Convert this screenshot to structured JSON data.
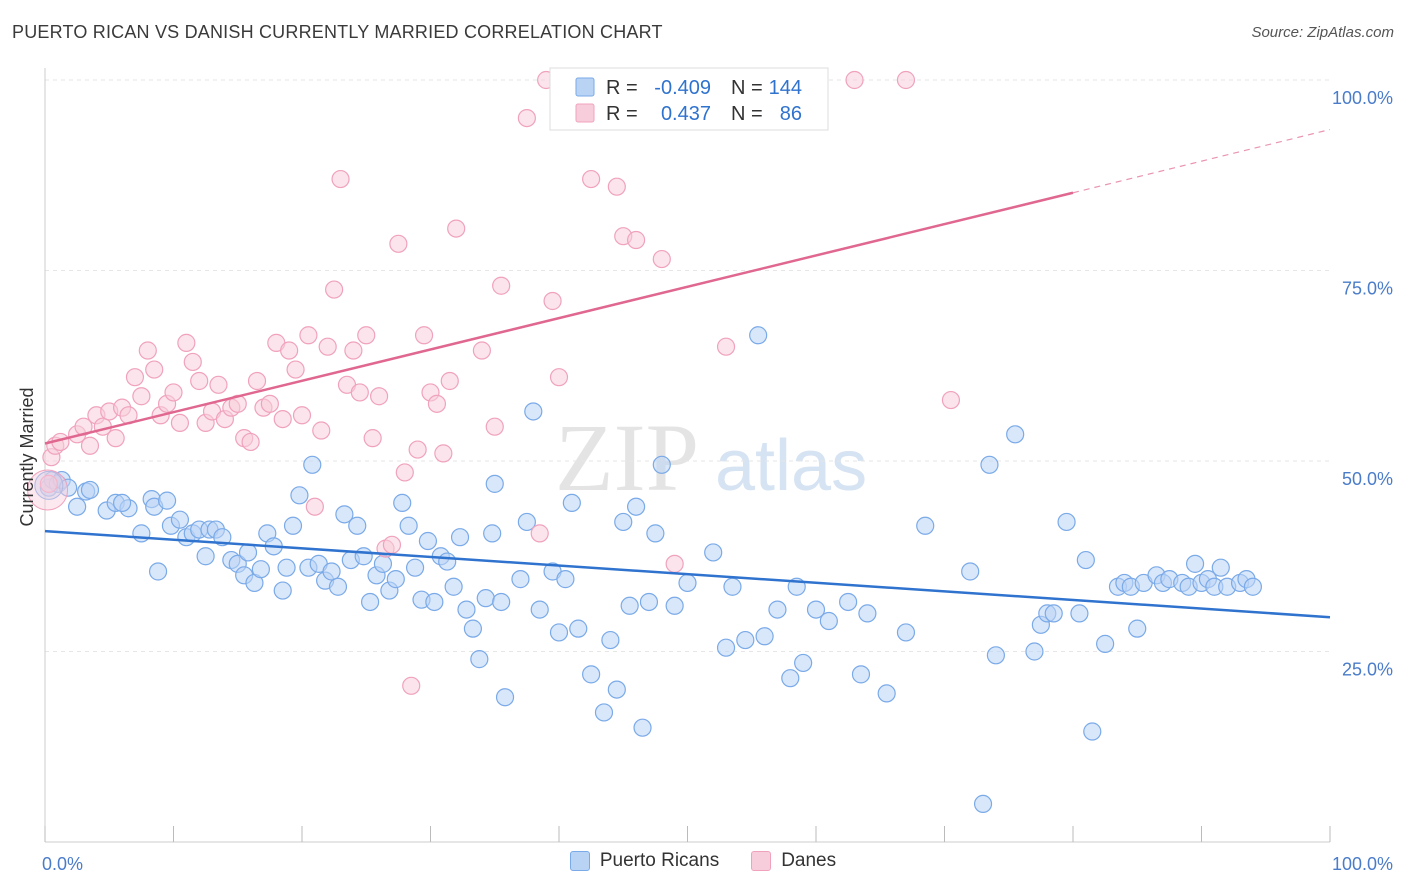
{
  "title": "PUERTO RICAN VS DANISH CURRENTLY MARRIED CORRELATION CHART",
  "source": "Source: ZipAtlas.com",
  "watermark": {
    "zip": "ZIP",
    "atlas": "atlas"
  },
  "chart_data": {
    "type": "scatter",
    "xlabel": "",
    "ylabel": "Currently Married",
    "xlim": [
      0,
      100
    ],
    "ylim": [
      0,
      100
    ],
    "x_tick_labels": [
      "0.0%",
      "100.0%"
    ],
    "y_ticks": [
      25,
      50,
      75,
      100
    ],
    "y_tick_labels": [
      "25.0%",
      "50.0%",
      "75.0%",
      "100.0%"
    ],
    "grid": true,
    "legend": {
      "placement": "top-center",
      "entries": [
        {
          "r_label": "R =",
          "r_value": "-0.409",
          "n_label": "N =",
          "n_value": "144"
        },
        {
          "r_label": "R =",
          "r_value": "0.437",
          "n_label": "N =",
          "n_value": "86"
        }
      ]
    },
    "series": [
      {
        "name": "Puerto Ricans",
        "color": "#7aaae8",
        "fill": "#b9d3f5",
        "line_color": "#2f73cf",
        "trend": {
          "x": [
            0,
            100
          ],
          "y": [
            40.8,
            29.5
          ]
        },
        "points": [
          [
            0.3,
            46.5
          ],
          [
            0.6,
            47.5
          ],
          [
            1.0,
            47.0
          ],
          [
            1.3,
            47.5
          ],
          [
            1.8,
            46.5
          ],
          [
            2.5,
            44.0
          ],
          [
            3.2,
            46.0
          ],
          [
            3.5,
            46.2
          ],
          [
            4.8,
            43.5
          ],
          [
            5.5,
            44.5
          ],
          [
            6.5,
            43.8
          ],
          [
            6.0,
            44.5
          ],
          [
            7.5,
            40.5
          ],
          [
            8.3,
            45.0
          ],
          [
            8.5,
            44.0
          ],
          [
            8.8,
            35.5
          ],
          [
            9.5,
            44.8
          ],
          [
            9.8,
            41.5
          ],
          [
            10.5,
            42.3
          ],
          [
            11.0,
            40.0
          ],
          [
            11.5,
            40.5
          ],
          [
            12.0,
            41.0
          ],
          [
            12.5,
            37.5
          ],
          [
            12.8,
            41.0
          ],
          [
            13.3,
            41.0
          ],
          [
            13.8,
            40.0
          ],
          [
            14.5,
            37.0
          ],
          [
            15.0,
            36.5
          ],
          [
            15.5,
            35.0
          ],
          [
            15.8,
            38.0
          ],
          [
            16.3,
            34.0
          ],
          [
            16.8,
            35.8
          ],
          [
            17.3,
            40.5
          ],
          [
            17.8,
            38.8
          ],
          [
            18.5,
            33.0
          ],
          [
            18.8,
            36.0
          ],
          [
            19.3,
            41.5
          ],
          [
            19.8,
            45.5
          ],
          [
            20.5,
            36.0
          ],
          [
            20.8,
            49.5
          ],
          [
            21.3,
            36.5
          ],
          [
            21.8,
            34.3
          ],
          [
            22.3,
            35.5
          ],
          [
            22.8,
            33.5
          ],
          [
            23.3,
            43.0
          ],
          [
            23.8,
            37.0
          ],
          [
            24.3,
            41.5
          ],
          [
            24.8,
            37.5
          ],
          [
            25.3,
            31.5
          ],
          [
            25.8,
            35.0
          ],
          [
            26.3,
            36.5
          ],
          [
            26.8,
            33.0
          ],
          [
            27.3,
            34.5
          ],
          [
            27.8,
            44.5
          ],
          [
            28.3,
            41.5
          ],
          [
            28.8,
            36.0
          ],
          [
            29.3,
            31.8
          ],
          [
            29.8,
            39.5
          ],
          [
            30.3,
            31.5
          ],
          [
            30.8,
            37.5
          ],
          [
            31.3,
            36.8
          ],
          [
            31.8,
            33.5
          ],
          [
            32.3,
            40.0
          ],
          [
            32.8,
            30.5
          ],
          [
            33.3,
            28.0
          ],
          [
            33.8,
            24.0
          ],
          [
            34.3,
            32.0
          ],
          [
            34.8,
            40.5
          ],
          [
            35.0,
            47.0
          ],
          [
            35.5,
            31.5
          ],
          [
            35.8,
            19.0
          ],
          [
            37.0,
            34.5
          ],
          [
            37.5,
            42.0
          ],
          [
            38.0,
            56.5
          ],
          [
            38.5,
            30.5
          ],
          [
            39.5,
            35.5
          ],
          [
            40.0,
            27.5
          ],
          [
            40.5,
            34.5
          ],
          [
            41.0,
            44.5
          ],
          [
            41.5,
            28.0
          ],
          [
            42.5,
            22.0
          ],
          [
            43.5,
            17.0
          ],
          [
            44.0,
            26.5
          ],
          [
            44.5,
            20.0
          ],
          [
            45.0,
            42.0
          ],
          [
            45.5,
            31.0
          ],
          [
            46.0,
            44.0
          ],
          [
            46.5,
            15.0
          ],
          [
            47.0,
            31.5
          ],
          [
            47.5,
            40.5
          ],
          [
            48.0,
            49.5
          ],
          [
            49.0,
            31.0
          ],
          [
            50.0,
            34.0
          ],
          [
            52.0,
            38.0
          ],
          [
            53.0,
            25.5
          ],
          [
            53.5,
            33.5
          ],
          [
            54.5,
            26.5
          ],
          [
            55.5,
            66.5
          ],
          [
            56.0,
            27.0
          ],
          [
            57.0,
            30.5
          ],
          [
            58.0,
            21.5
          ],
          [
            58.5,
            33.5
          ],
          [
            59.0,
            23.5
          ],
          [
            60.0,
            30.5
          ],
          [
            61.0,
            29.0
          ],
          [
            62.5,
            31.5
          ],
          [
            63.5,
            22.0
          ],
          [
            64.0,
            30.0
          ],
          [
            65.5,
            19.5
          ],
          [
            67.0,
            27.5
          ],
          [
            68.5,
            41.5
          ],
          [
            72.0,
            35.5
          ],
          [
            73.5,
            49.5
          ],
          [
            74.0,
            24.5
          ],
          [
            75.5,
            53.5
          ],
          [
            77.0,
            25.0
          ],
          [
            77.5,
            28.5
          ],
          [
            78.0,
            30.0
          ],
          [
            78.5,
            30.0
          ],
          [
            79.5,
            42.0
          ],
          [
            80.5,
            30.0
          ],
          [
            81.0,
            37.0
          ],
          [
            81.5,
            14.5
          ],
          [
            82.5,
            26.0
          ],
          [
            83.5,
            33.5
          ],
          [
            84.0,
            34.0
          ],
          [
            84.5,
            33.5
          ],
          [
            85.0,
            28.0
          ],
          [
            85.5,
            34.0
          ],
          [
            86.5,
            35.0
          ],
          [
            87.0,
            34.0
          ],
          [
            87.5,
            34.5
          ],
          [
            88.5,
            34.0
          ],
          [
            89.0,
            33.5
          ],
          [
            89.5,
            36.5
          ],
          [
            90.0,
            34.0
          ],
          [
            90.5,
            34.5
          ],
          [
            91.0,
            33.5
          ],
          [
            91.5,
            36.0
          ],
          [
            92.0,
            33.5
          ],
          [
            93.0,
            34.0
          ],
          [
            93.5,
            34.5
          ],
          [
            94.0,
            33.5
          ],
          [
            73.0,
            5.0
          ]
        ]
      },
      {
        "name": "Danes",
        "color": "#f0a2bd",
        "fill": "#f8cddb",
        "line_color": "#e0678f",
        "trend": {
          "x": [
            0,
            80
          ],
          "y": [
            52.3,
            85.2
          ]
        },
        "trend_ext": {
          "x": [
            80,
            100
          ],
          "y": [
            85.2,
            93.5
          ]
        },
        "points": [
          [
            0.3,
            47.0
          ],
          [
            0.5,
            50.5
          ],
          [
            0.8,
            52.0
          ],
          [
            1.2,
            52.5
          ],
          [
            2.5,
            53.5
          ],
          [
            3.0,
            54.5
          ],
          [
            3.5,
            52.0
          ],
          [
            4.0,
            56.0
          ],
          [
            4.5,
            54.5
          ],
          [
            5.0,
            56.5
          ],
          [
            5.5,
            53.0
          ],
          [
            6.0,
            57.0
          ],
          [
            6.5,
            56.0
          ],
          [
            7.0,
            61.0
          ],
          [
            7.5,
            58.5
          ],
          [
            8.0,
            64.5
          ],
          [
            8.5,
            62.0
          ],
          [
            9.0,
            56.0
          ],
          [
            9.5,
            57.5
          ],
          [
            10.0,
            59.0
          ],
          [
            10.5,
            55.0
          ],
          [
            11.0,
            65.5
          ],
          [
            11.5,
            63.0
          ],
          [
            12.0,
            60.5
          ],
          [
            12.5,
            55.0
          ],
          [
            13.0,
            56.5
          ],
          [
            13.5,
            60.0
          ],
          [
            14.0,
            55.5
          ],
          [
            14.5,
            57.0
          ],
          [
            15.0,
            57.5
          ],
          [
            15.5,
            53.0
          ],
          [
            16.0,
            52.5
          ],
          [
            16.5,
            60.5
          ],
          [
            17.0,
            57.0
          ],
          [
            17.5,
            57.5
          ],
          [
            18.0,
            65.5
          ],
          [
            18.5,
            55.5
          ],
          [
            19.0,
            64.5
          ],
          [
            19.5,
            62.0
          ],
          [
            20.0,
            56.0
          ],
          [
            20.5,
            66.5
          ],
          [
            21.0,
            44.0
          ],
          [
            21.5,
            54.0
          ],
          [
            22.0,
            65.0
          ],
          [
            22.5,
            72.5
          ],
          [
            23.0,
            87.0
          ],
          [
            23.5,
            60.0
          ],
          [
            24.0,
            64.5
          ],
          [
            24.5,
            59.0
          ],
          [
            25.0,
            66.5
          ],
          [
            25.5,
            53.0
          ],
          [
            26.0,
            58.5
          ],
          [
            26.5,
            38.5
          ],
          [
            27.0,
            39.0
          ],
          [
            27.5,
            78.5
          ],
          [
            28.0,
            48.5
          ],
          [
            28.5,
            20.5
          ],
          [
            29.0,
            51.5
          ],
          [
            29.5,
            66.5
          ],
          [
            30.0,
            59.0
          ],
          [
            30.5,
            57.5
          ],
          [
            31.0,
            51.0
          ],
          [
            31.5,
            60.5
          ],
          [
            32.0,
            80.5
          ],
          [
            34.0,
            64.5
          ],
          [
            35.0,
            54.5
          ],
          [
            35.5,
            73.0
          ],
          [
            37.5,
            95.0
          ],
          [
            38.5,
            40.5
          ],
          [
            39.0,
            100.0
          ],
          [
            39.5,
            71.0
          ],
          [
            40.0,
            61.0
          ],
          [
            41.5,
            100.0
          ],
          [
            42.5,
            87.0
          ],
          [
            43.5,
            100.0
          ],
          [
            44.5,
            86.0
          ],
          [
            45.0,
            79.5
          ],
          [
            46.0,
            79.0
          ],
          [
            48.0,
            76.5
          ],
          [
            49.0,
            36.5
          ],
          [
            50.0,
            100.0
          ],
          [
            52.0,
            100.0
          ],
          [
            53.0,
            65.0
          ],
          [
            63.0,
            100.0
          ],
          [
            67.0,
            100.0
          ],
          [
            70.5,
            58.0
          ]
        ]
      }
    ]
  }
}
